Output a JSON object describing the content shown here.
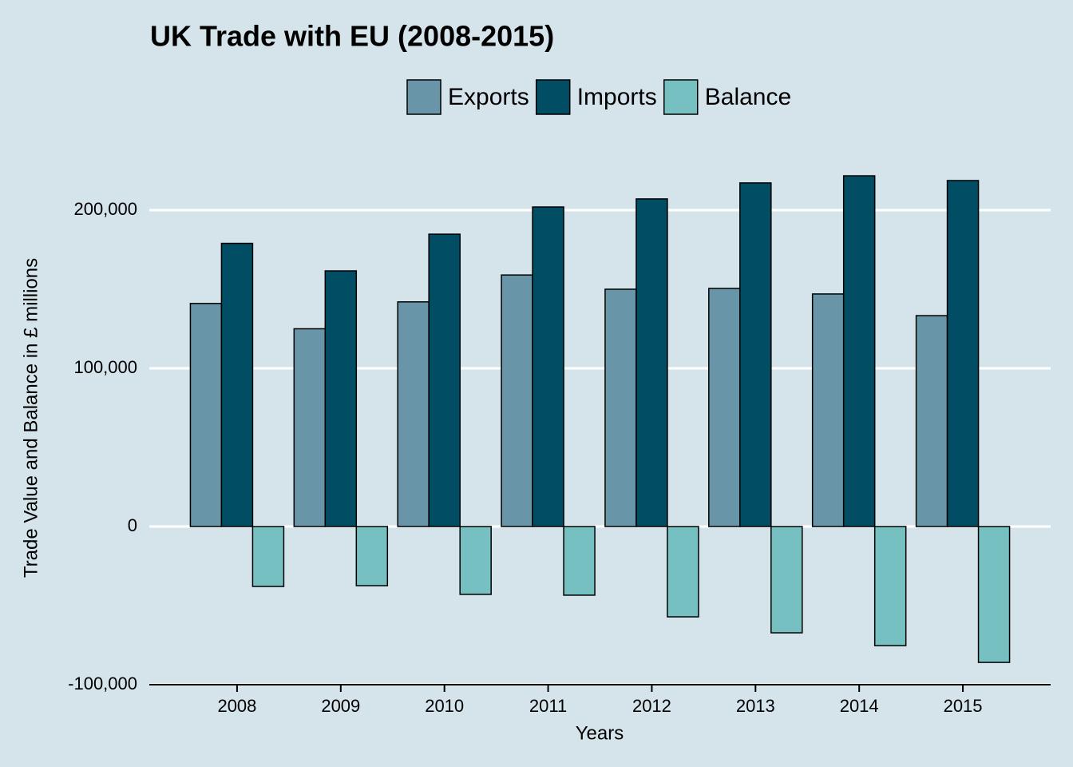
{
  "chart_data": {
    "type": "bar",
    "title": "UK Trade with EU (2008-2015)",
    "x_label": "Years",
    "y_label": "Trade Value and Balance in £ millions",
    "categories": [
      "2008",
      "2009",
      "2010",
      "2011",
      "2012",
      "2013",
      "2014",
      "2015"
    ],
    "series": [
      {
        "name": "Exports",
        "color": "#6995a8",
        "values": [
          141000,
          125000,
          142000,
          159000,
          150000,
          150500,
          147000,
          133300
        ]
      },
      {
        "name": "Imports",
        "color": "#014d64",
        "values": [
          179000,
          161600,
          184800,
          202000,
          207100,
          217200,
          221700,
          218700
        ]
      },
      {
        "name": "Balance",
        "color": "#76c0c1",
        "values": [
          -37900,
          -37400,
          -42900,
          -43400,
          -57100,
          -67200,
          -75300,
          -85900
        ]
      }
    ],
    "ylim": [
      -100000,
      230000
    ],
    "yticks": [
      {
        "value": -100000,
        "label": "-100,000"
      },
      0,
      {
        "value": 100000,
        "label": "100,000"
      },
      {
        "value": 200000,
        "label": "200,000"
      }
    ],
    "grid": true,
    "legend": "top"
  }
}
